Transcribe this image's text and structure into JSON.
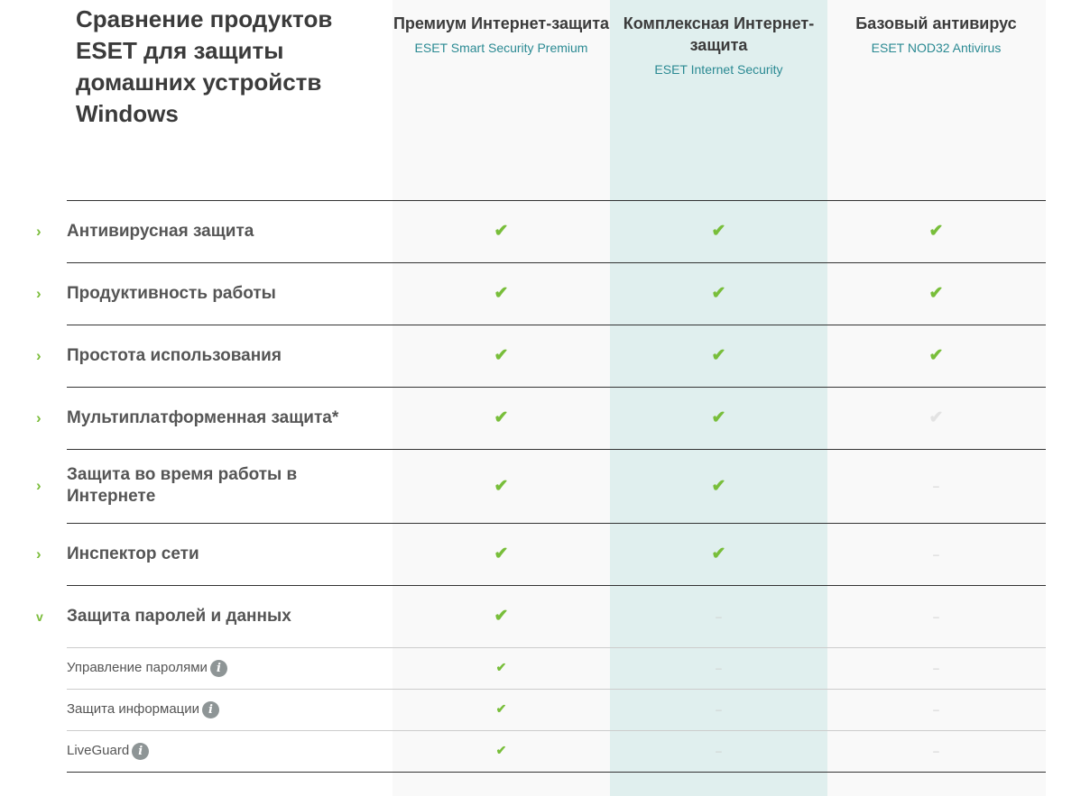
{
  "title": "Сравнение продуктов ESET для защиты домашних устройств Windows",
  "products": [
    {
      "name": "Премиум Интернет-защита",
      "sku": "ESET Smart Security Premium"
    },
    {
      "name": "Комплексная Интернет-защита",
      "sku": "ESET Internet Security"
    },
    {
      "name": "Базовый антивирус",
      "sku": "ESET NOD32 Antivirus"
    }
  ],
  "colors": {
    "accent": "#78be3a",
    "link": "#2b8a93",
    "highlight": "#e0efee"
  },
  "rows": [
    {
      "label": "Антивирусная защита",
      "expanded": false,
      "values": [
        "check",
        "check",
        "check"
      ]
    },
    {
      "label": "Продуктивность работы",
      "expanded": false,
      "values": [
        "check",
        "check",
        "check"
      ]
    },
    {
      "label": "Простота использования",
      "expanded": false,
      "values": [
        "check",
        "check",
        "check"
      ]
    },
    {
      "label": "Мультиплатформенная защита*",
      "expanded": false,
      "values": [
        "check",
        "check",
        "check-disabled"
      ]
    },
    {
      "label": "Защита во время работы в Интернете",
      "expanded": false,
      "values": [
        "check",
        "check",
        "dash"
      ]
    },
    {
      "label": "Инспектор сети",
      "expanded": false,
      "values": [
        "check",
        "check",
        "dash"
      ]
    },
    {
      "label": "Защита паролей и данных",
      "expanded": true,
      "values": [
        "check",
        "dash",
        "dash"
      ]
    },
    {
      "label": "Управление паролями",
      "sub": true,
      "info": true,
      "values": [
        "check",
        "dash",
        "dash"
      ]
    },
    {
      "label": "Защита информации",
      "sub": true,
      "info": true,
      "values": [
        "check",
        "dash",
        "dash"
      ]
    },
    {
      "label": "LiveGuard",
      "sub": true,
      "info": true,
      "values": [
        "check",
        "dash",
        "dash"
      ]
    }
  ],
  "glyphs": {
    "check": "✔",
    "dash": "–",
    "chevron_right": "›",
    "chevron_down": "⌄",
    "info": "i"
  }
}
